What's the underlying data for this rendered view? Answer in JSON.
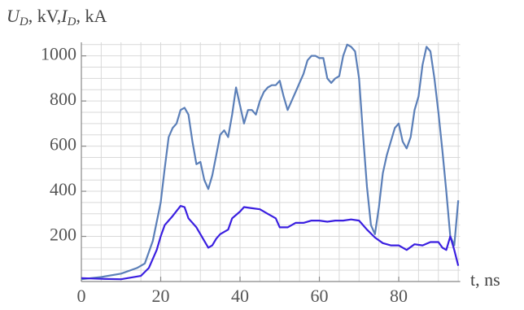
{
  "chart_data": {
    "type": "line",
    "ylabel": [
      "U",
      "D",
      ", kV,",
      "I",
      "D",
      ", kA"
    ],
    "xlabel": "t, ns",
    "xlim": [
      0,
      95.5
    ],
    "ylim": [
      0,
      1060
    ],
    "xticks": [
      0,
      20,
      40,
      60,
      80
    ],
    "yticks": [
      200,
      400,
      600,
      800,
      1000
    ],
    "xgrid": [
      5,
      10,
      15,
      20,
      25,
      30,
      35,
      40,
      45,
      50,
      55,
      60,
      65,
      70,
      75,
      80,
      85,
      90,
      95
    ],
    "ygrid": [
      50,
      100,
      150,
      200,
      250,
      300,
      350,
      400,
      450,
      500,
      550,
      600,
      650,
      700,
      750,
      800,
      850,
      900,
      950,
      1000,
      1050
    ],
    "grid": true,
    "series": [
      {
        "color": "#5b7fb8",
        "x": [
          0,
          5,
          10,
          14,
          16,
          18,
          20,
          21,
          22,
          23,
          24,
          25,
          26,
          27,
          28,
          29,
          30,
          31,
          32,
          33,
          34,
          35,
          36,
          37,
          38,
          39,
          40,
          41,
          42,
          43,
          44,
          45,
          46,
          47,
          48,
          49,
          50,
          51,
          52,
          53,
          54,
          55,
          56,
          57,
          58,
          59,
          60,
          61,
          62,
          63,
          64,
          65,
          66,
          67,
          68,
          69,
          70,
          71,
          72,
          73,
          74,
          75,
          76,
          77,
          78,
          79,
          80,
          81,
          82,
          83,
          84,
          85,
          86,
          87,
          88,
          89,
          90,
          91,
          92,
          93,
          94,
          95
        ],
        "values": [
          10,
          20,
          35,
          60,
          80,
          180,
          350,
          500,
          640,
          680,
          700,
          760,
          770,
          740,
          620,
          520,
          530,
          450,
          410,
          470,
          560,
          650,
          670,
          640,
          740,
          860,
          780,
          700,
          760,
          760,
          740,
          800,
          840,
          860,
          870,
          870,
          890,
          820,
          760,
          800,
          840,
          880,
          920,
          980,
          1000,
          1000,
          990,
          990,
          900,
          880,
          900,
          910,
          1000,
          1050,
          1040,
          1020,
          900,
          650,
          420,
          250,
          210,
          330,
          480,
          560,
          620,
          680,
          700,
          620,
          590,
          640,
          760,
          820,
          960,
          1040,
          1020,
          900,
          750,
          580,
          400,
          200,
          160,
          360
        ]
      },
      {
        "color": "#3a1fe0",
        "x": [
          0,
          5,
          10,
          15,
          17,
          19,
          20,
          21,
          23,
          25,
          26,
          27,
          29,
          30,
          31,
          32,
          33,
          34,
          35,
          37,
          38,
          40,
          41,
          43,
          45,
          47,
          48,
          49,
          50,
          52,
          54,
          56,
          58,
          60,
          62,
          64,
          66,
          68,
          70,
          72,
          74,
          76,
          78,
          80,
          82,
          84,
          86,
          88,
          90,
          91,
          92,
          93,
          94,
          95
        ],
        "values": [
          15,
          12,
          10,
          25,
          60,
          140,
          200,
          250,
          290,
          335,
          330,
          280,
          240,
          210,
          180,
          150,
          160,
          190,
          210,
          230,
          280,
          310,
          330,
          325,
          320,
          300,
          290,
          280,
          240,
          240,
          260,
          260,
          270,
          270,
          265,
          270,
          270,
          275,
          270,
          230,
          195,
          170,
          160,
          160,
          140,
          165,
          160,
          175,
          175,
          150,
          140,
          200,
          140,
          70
        ]
      }
    ]
  }
}
